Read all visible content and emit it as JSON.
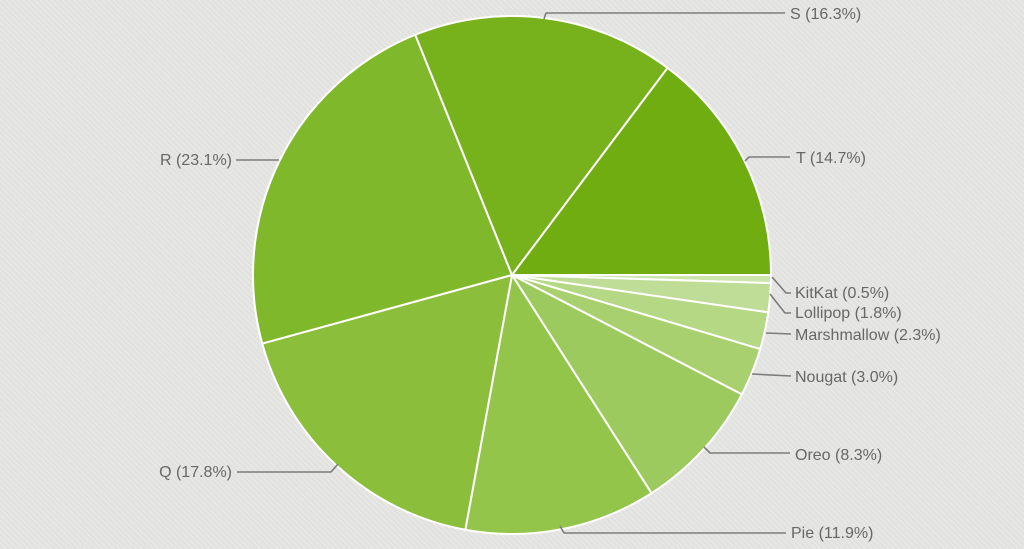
{
  "page": {
    "background_color": "#e3e3e1"
  },
  "chart_data": {
    "type": "pie",
    "title": "",
    "legend_position": "none",
    "direction": "clockwise",
    "start_angle_deg": 0,
    "stroke_color": "#ffffff",
    "leader_line_color": "#7c7c7c",
    "label_text_color": "#676767",
    "categories": [
      "KitKat",
      "Lollipop",
      "Marshmallow",
      "Nougat",
      "Oreo",
      "Pie",
      "Q",
      "R",
      "S",
      "T"
    ],
    "values": [
      0.5,
      1.8,
      2.3,
      3.0,
      8.3,
      11.9,
      17.8,
      23.1,
      16.3,
      14.7
    ],
    "slices": [
      {
        "name": "KitKat",
        "value": 0.5,
        "display_label": "KitKat (0.5%)",
        "color": "#cde4ab"
      },
      {
        "name": "Lollipop",
        "value": 1.8,
        "display_label": "Lollipop (1.8%)",
        "color": "#c0dd97"
      },
      {
        "name": "Marshmallow",
        "value": 2.3,
        "display_label": "Marshmallow (2.3%)",
        "color": "#b4d884"
      },
      {
        "name": "Nougat",
        "value": 3.0,
        "display_label": "Nougat (3.0%)",
        "color": "#a8d06f"
      },
      {
        "name": "Oreo",
        "value": 8.3,
        "display_label": "Oreo (8.3%)",
        "color": "#9dca5e"
      },
      {
        "name": "Pie",
        "value": 11.9,
        "display_label": "Pie (11.9%)",
        "color": "#93c54b"
      },
      {
        "name": "Q",
        "value": 17.8,
        "display_label": "Q (17.8%)",
        "color": "#8abe3b"
      },
      {
        "name": "R",
        "value": 23.1,
        "display_label": "R (23.1%)",
        "color": "#80b82b"
      },
      {
        "name": "S",
        "value": 16.3,
        "display_label": "S (16.3%)",
        "color": "#77b11c"
      },
      {
        "name": "T",
        "value": 14.7,
        "display_label": "T (14.7%)",
        "color": "#6fad10"
      }
    ]
  }
}
